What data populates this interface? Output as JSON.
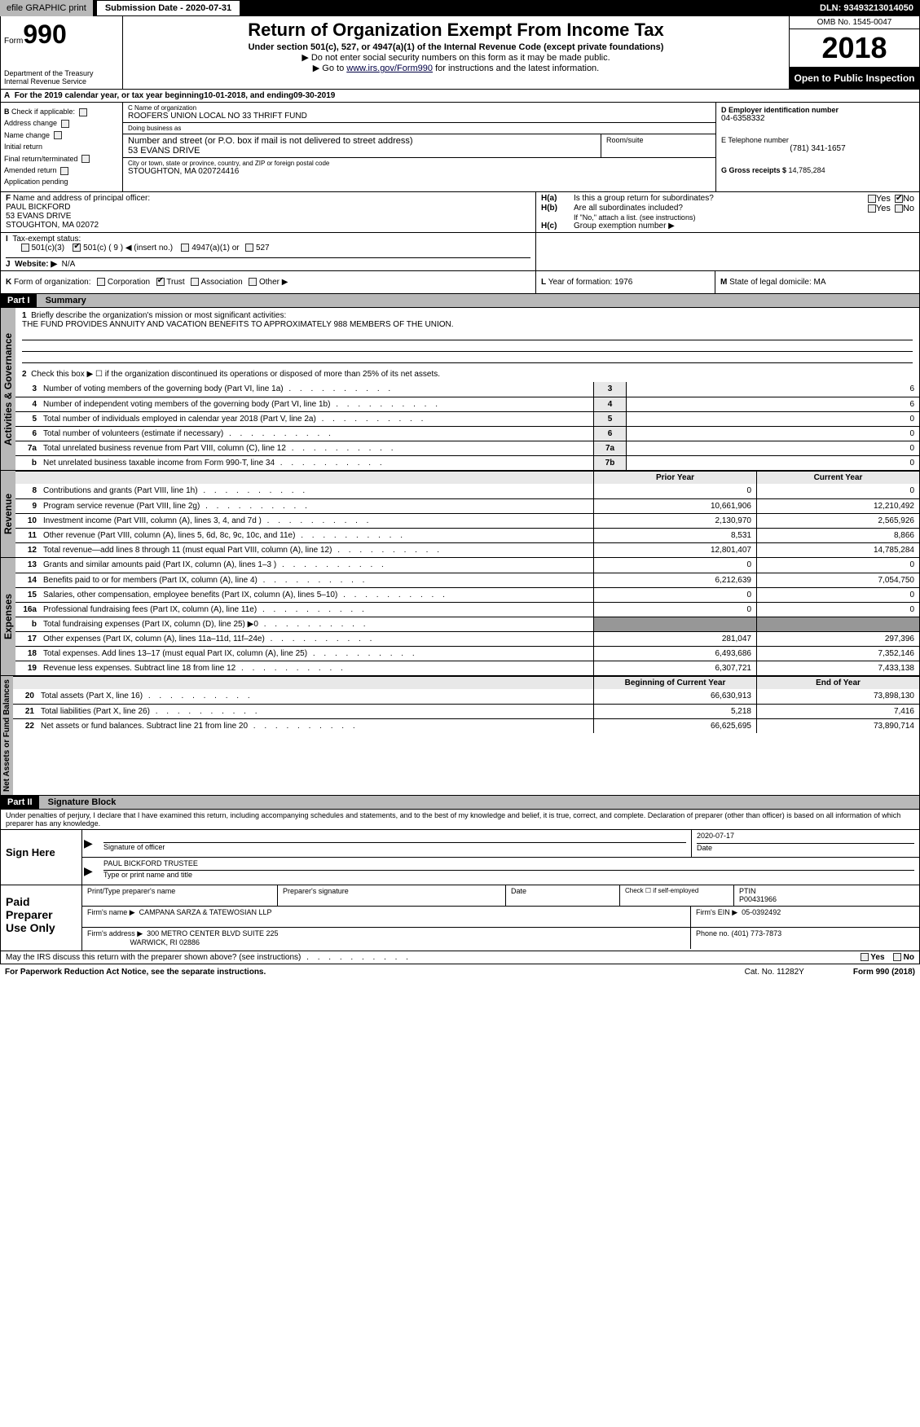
{
  "topbar": {
    "efile_label": "efile GRAPHIC print",
    "submission_label": "Submission Date - 2020-07-31",
    "dln": "DLN: 93493213014050"
  },
  "header": {
    "form_prefix": "Form",
    "form_number": "990",
    "dept1": "Department of the Treasury",
    "dept2": "Internal Revenue Service",
    "title": "Return of Organization Exempt From Income Tax",
    "sub1": "Under section 501(c), 527, or 4947(a)(1) of the Internal Revenue Code (except private foundations)",
    "sub2": "▶ Do not enter social security numbers on this form as it may be made public.",
    "sub3a": "▶ Go to ",
    "sub3link": "www.irs.gov/Form990",
    "sub3b": " for instructions and the latest information.",
    "omb": "OMB No. 1545-0047",
    "year": "2018",
    "open": "Open to Public Inspection"
  },
  "row_a": {
    "prefix": "A",
    "text1": "For the 2019 calendar year, or tax year beginning ",
    "begin": "10-01-2018",
    "text2": ", and ending ",
    "end": "09-30-2019"
  },
  "section_b": {
    "b_label": "B",
    "check_if": "Check if applicable:",
    "addr_change": "Address change",
    "name_change": "Name change",
    "initial": "Initial return",
    "final": "Final return/terminated",
    "amended": "Amended return",
    "app_pending": "Application pending",
    "c_label": "C Name of organization",
    "org_name": "ROOFERS UNION LOCAL NO 33 THRIFT FUND",
    "dba_label": "Doing business as",
    "dba": "",
    "street_label": "Number and street (or P.O. box if mail is not delivered to street address)",
    "street": "53 EVANS DRIVE",
    "room_label": "Room/suite",
    "city_label": "City or town, state or province, country, and ZIP or foreign postal code",
    "city": "STOUGHTON, MA  020724416",
    "d_label": "D Employer identification number",
    "ein": "04-6358332",
    "e_label": "E Telephone number",
    "phone": "(781) 341-1657",
    "g_label": "G Gross receipts $ ",
    "gross": "14,785,284"
  },
  "row_f": {
    "f_label": "F",
    "f_text": "Name and address of principal officer:",
    "name": "PAUL BICKFORD",
    "addr1": "53 EVANS DRIVE",
    "addr2": "STOUGHTON, MA  02072",
    "ha": "H(a)",
    "ha_text": "Is this a group return for subordinates?",
    "hb": "H(b)",
    "hb_text": "Are all subordinates included?",
    "hb_note": "If \"No,\" attach a list. (see instructions)",
    "hc": "H(c)",
    "hc_text": "Group exemption number ▶",
    "yes": "Yes",
    "no": "No"
  },
  "row_i": {
    "i_label": "I",
    "i_text": "Tax-exempt status:",
    "opt1": "501(c)(3)",
    "opt2": "501(c) ( 9 ) ◀ (insert no.)",
    "opt3": "4947(a)(1) or",
    "opt4": "527"
  },
  "row_j": {
    "j_label": "J",
    "j_text": "Website: ▶",
    "website": "N/A"
  },
  "row_k": {
    "k_label": "K",
    "k_text": "Form of organization:",
    "corp": "Corporation",
    "trust": "Trust",
    "assoc": "Association",
    "other": "Other ▶",
    "l_label": "L",
    "l_text": "Year of formation: ",
    "l_val": "1976",
    "m_label": "M",
    "m_text": "State of legal domicile: ",
    "m_val": "MA"
  },
  "part1": {
    "part": "Part I",
    "title": "Summary",
    "l1_num": "1",
    "l1": "Briefly describe the organization's mission or most significant activities:",
    "mission": "THE FUND PROVIDES ANNUITY AND VACATION BENEFITS TO APPROXIMATELY 988 MEMBERS OF THE UNION.",
    "l2_num": "2",
    "l2": "Check this box ▶ ☐ if the organization discontinued its operations or disposed of more than 25% of its net assets.",
    "govern_label": "Activities & Governance",
    "lines_gov": [
      {
        "n": "3",
        "d": "Number of voting members of the governing body (Part VI, line 1a)",
        "b": "3",
        "v": "6"
      },
      {
        "n": "4",
        "d": "Number of independent voting members of the governing body (Part VI, line 1b)",
        "b": "4",
        "v": "6"
      },
      {
        "n": "5",
        "d": "Total number of individuals employed in calendar year 2018 (Part V, line 2a)",
        "b": "5",
        "v": "0"
      },
      {
        "n": "6",
        "d": "Total number of volunteers (estimate if necessary)",
        "b": "6",
        "v": "0"
      },
      {
        "n": "7a",
        "d": "Total unrelated business revenue from Part VIII, column (C), line 12",
        "b": "7a",
        "v": "0"
      },
      {
        "n": "b",
        "d": "Net unrelated business taxable income from Form 990-T, line 34",
        "b": "7b",
        "v": "0"
      }
    ],
    "prior_year": "Prior Year",
    "current_year": "Current Year",
    "revenue_label": "Revenue",
    "lines_rev": [
      {
        "n": "8",
        "d": "Contributions and grants (Part VIII, line 1h)",
        "p": "0",
        "c": "0"
      },
      {
        "n": "9",
        "d": "Program service revenue (Part VIII, line 2g)",
        "p": "10,661,906",
        "c": "12,210,492"
      },
      {
        "n": "10",
        "d": "Investment income (Part VIII, column (A), lines 3, 4, and 7d )",
        "p": "2,130,970",
        "c": "2,565,926"
      },
      {
        "n": "11",
        "d": "Other revenue (Part VIII, column (A), lines 5, 6d, 8c, 9c, 10c, and 11e)",
        "p": "8,531",
        "c": "8,866"
      },
      {
        "n": "12",
        "d": "Total revenue—add lines 8 through 11 (must equal Part VIII, column (A), line 12)",
        "p": "12,801,407",
        "c": "14,785,284"
      }
    ],
    "expenses_label": "Expenses",
    "lines_exp": [
      {
        "n": "13",
        "d": "Grants and similar amounts paid (Part IX, column (A), lines 1–3 )",
        "p": "0",
        "c": "0"
      },
      {
        "n": "14",
        "d": "Benefits paid to or for members (Part IX, column (A), line 4)",
        "p": "6,212,639",
        "c": "7,054,750"
      },
      {
        "n": "15",
        "d": "Salaries, other compensation, employee benefits (Part IX, column (A), lines 5–10)",
        "p": "0",
        "c": "0"
      },
      {
        "n": "16a",
        "d": "Professional fundraising fees (Part IX, column (A), line 11e)",
        "p": "0",
        "c": "0"
      },
      {
        "n": "b",
        "d": "Total fundraising expenses (Part IX, column (D), line 25) ▶0",
        "p": "GRAY",
        "c": "GRAY"
      },
      {
        "n": "17",
        "d": "Other expenses (Part IX, column (A), lines 11a–11d, 11f–24e)",
        "p": "281,047",
        "c": "297,396"
      },
      {
        "n": "18",
        "d": "Total expenses. Add lines 13–17 (must equal Part IX, column (A), line 25)",
        "p": "6,493,686",
        "c": "7,352,146"
      },
      {
        "n": "19",
        "d": "Revenue less expenses. Subtract line 18 from line 12",
        "p": "6,307,721",
        "c": "7,433,138"
      }
    ],
    "netassets_label": "Net Assets or Fund Balances",
    "begin_year": "Beginning of Current Year",
    "end_year": "End of Year",
    "lines_net": [
      {
        "n": "20",
        "d": "Total assets (Part X, line 16)",
        "p": "66,630,913",
        "c": "73,898,130"
      },
      {
        "n": "21",
        "d": "Total liabilities (Part X, line 26)",
        "p": "5,218",
        "c": "7,416"
      },
      {
        "n": "22",
        "d": "Net assets or fund balances. Subtract line 21 from line 20",
        "p": "66,625,695",
        "c": "73,890,714"
      }
    ]
  },
  "part2": {
    "part": "Part II",
    "title": "Signature Block",
    "perjury": "Under penalties of perjury, I declare that I have examined this return, including accompanying schedules and statements, and to the best of my knowledge and belief, it is true, correct, and complete. Declaration of preparer (other than officer) is based on all information of which preparer has any knowledge.",
    "sign_here": "Sign Here",
    "sig_officer": "Signature of officer",
    "sig_date": "2020-07-17",
    "date_label": "Date",
    "officer_name": "PAUL BICKFORD  TRUSTEE",
    "type_name": "Type or print name and title",
    "paid": "Paid Preparer Use Only",
    "prep_name_label": "Print/Type preparer's name",
    "prep_sig_label": "Preparer's signature",
    "check_self": "Check ☐ if self-employed",
    "ptin_label": "PTIN",
    "ptin": "P00431966",
    "firm_name_label": "Firm's name   ▶",
    "firm_name": "CAMPANA SARZA & TATEWOSIAN LLP",
    "firm_ein_label": "Firm's EIN ▶",
    "firm_ein": "05-0392492",
    "firm_addr_label": "Firm's address ▶",
    "firm_addr1": "300 METRO CENTER BLVD SUITE 225",
    "firm_addr2": "WARWICK, RI  02886",
    "phone_label": "Phone no. ",
    "phone": "(401) 773-7873",
    "may_irs": "May the IRS discuss this return with the preparer shown above? (see instructions)",
    "yes": "Yes",
    "no": "No"
  },
  "footer": {
    "left": "For Paperwork Reduction Act Notice, see the separate instructions.",
    "mid": "Cat. No. 11282Y",
    "right": "Form 990 (2018)"
  }
}
